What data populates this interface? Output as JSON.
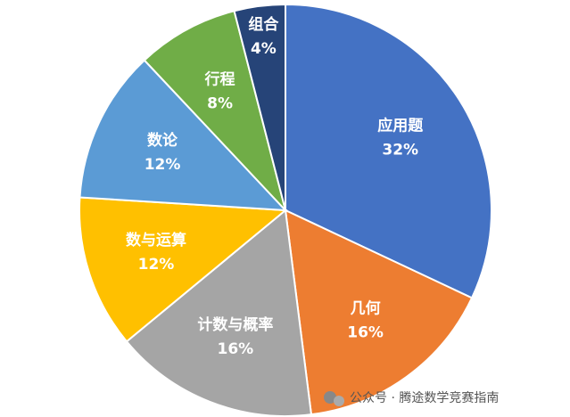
{
  "chart_data": {
    "type": "pie",
    "categories": [
      "应用题",
      "几何",
      "计数与概率",
      "数与运算",
      "数论",
      "行程",
      "组合"
    ],
    "values": [
      32,
      16,
      16,
      12,
      12,
      8,
      4
    ],
    "value_labels": [
      "32%",
      "16%",
      "16%",
      "12%",
      "12%",
      "8%",
      "4%"
    ],
    "colors": [
      "#4472c4",
      "#ed7d31",
      "#a5a5a5",
      "#ffc000",
      "#5b9bd5",
      "#70ad47",
      "#264478"
    ]
  },
  "watermark": "公众号 · 腾途数学竞赛指南"
}
